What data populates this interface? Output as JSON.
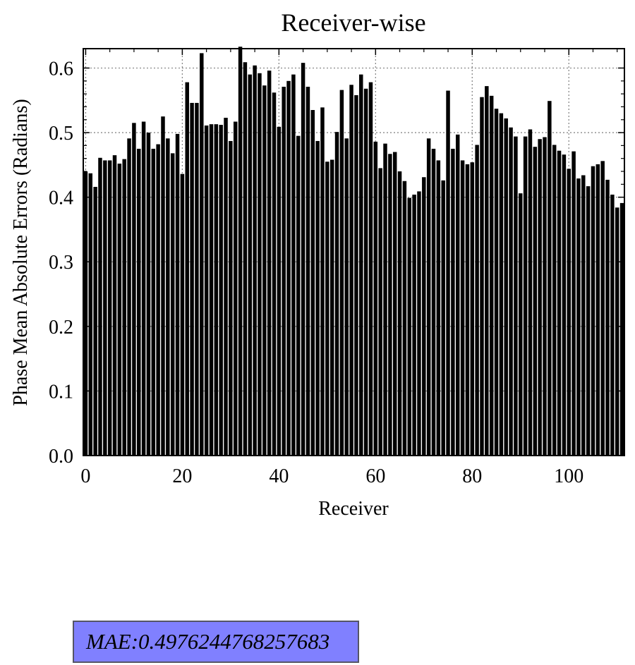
{
  "chart_data": {
    "type": "bar",
    "title": "Receiver-wise",
    "xlabel": "Receiver",
    "ylabel": "Phase Mean Absolute Errors (Radians)",
    "xlim": [
      -0.5,
      111.5
    ],
    "ylim": [
      0.0,
      0.63
    ],
    "xticks": [
      0,
      20,
      40,
      60,
      80,
      100
    ],
    "xtick_labels": [
      "0",
      "20",
      "40",
      "60",
      "80",
      "100"
    ],
    "yticks": [
      0.0,
      0.1,
      0.2,
      0.3,
      0.4,
      0.5,
      0.6
    ],
    "ytick_labels": [
      "0.0",
      "0.1",
      "0.2",
      "0.3",
      "0.4",
      "0.5",
      "0.6"
    ],
    "grid": true,
    "bar_color": "#000000",
    "values": [
      0.44,
      0.437,
      0.416,
      0.461,
      0.457,
      0.457,
      0.465,
      0.452,
      0.459,
      0.491,
      0.515,
      0.475,
      0.517,
      0.5,
      0.475,
      0.482,
      0.525,
      0.491,
      0.468,
      0.498,
      0.436,
      0.578,
      0.546,
      0.546,
      0.623,
      0.511,
      0.513,
      0.513,
      0.512,
      0.523,
      0.487,
      0.517,
      0.633,
      0.609,
      0.59,
      0.604,
      0.592,
      0.573,
      0.596,
      0.562,
      0.509,
      0.571,
      0.58,
      0.59,
      0.495,
      0.608,
      0.571,
      0.535,
      0.487,
      0.539,
      0.455,
      0.458,
      0.501,
      0.566,
      0.491,
      0.574,
      0.558,
      0.59,
      0.568,
      0.578,
      0.486,
      0.445,
      0.483,
      0.467,
      0.47,
      0.44,
      0.425,
      0.399,
      0.404,
      0.409,
      0.431,
      0.491,
      0.475,
      0.457,
      0.426,
      0.565,
      0.475,
      0.497,
      0.457,
      0.451,
      0.454,
      0.481,
      0.555,
      0.572,
      0.557,
      0.537,
      0.53,
      0.522,
      0.508,
      0.494,
      0.406,
      0.494,
      0.505,
      0.478,
      0.49,
      0.493,
      0.549,
      0.481,
      0.472,
      0.466,
      0.444,
      0.471,
      0.429,
      0.434,
      0.417,
      0.448,
      0.451,
      0.456,
      0.427,
      0.404,
      0.384,
      0.391
    ]
  },
  "annotation": {
    "text": "MAE:0.4976244768257683",
    "background": "#8080ff"
  }
}
